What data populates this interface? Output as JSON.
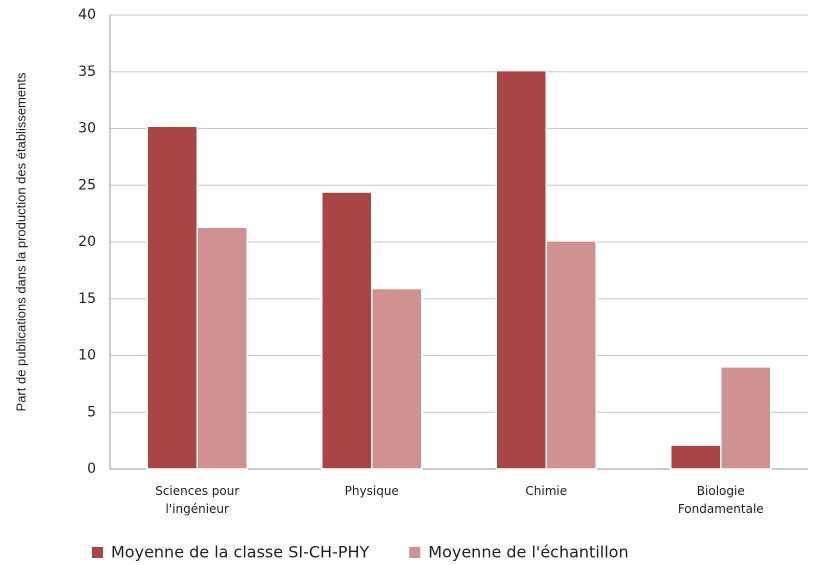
{
  "chart_data": {
    "type": "bar",
    "ylabel": "Part de publications dans la production des établissements",
    "categories": [
      [
        "Sciences pour",
        "l'ingénieur"
      ],
      [
        "Physique"
      ],
      [
        "Chimie"
      ],
      [
        "Biologie",
        "Fondamentale"
      ]
    ],
    "series": [
      {
        "name": "Moyenne de la classe SI-CH-PHY",
        "color": "#a94545",
        "values": [
          30.2,
          24.4,
          35.1,
          2.1
        ]
      },
      {
        "name": "Moyenne de l'échantillon",
        "color": "#d09191",
        "values": [
          21.3,
          15.9,
          20.1,
          9.0
        ]
      }
    ],
    "ylim": [
      0,
      40
    ],
    "yticks": [
      0,
      5,
      10,
      15,
      20,
      25,
      30,
      35,
      40
    ],
    "grid": true
  }
}
